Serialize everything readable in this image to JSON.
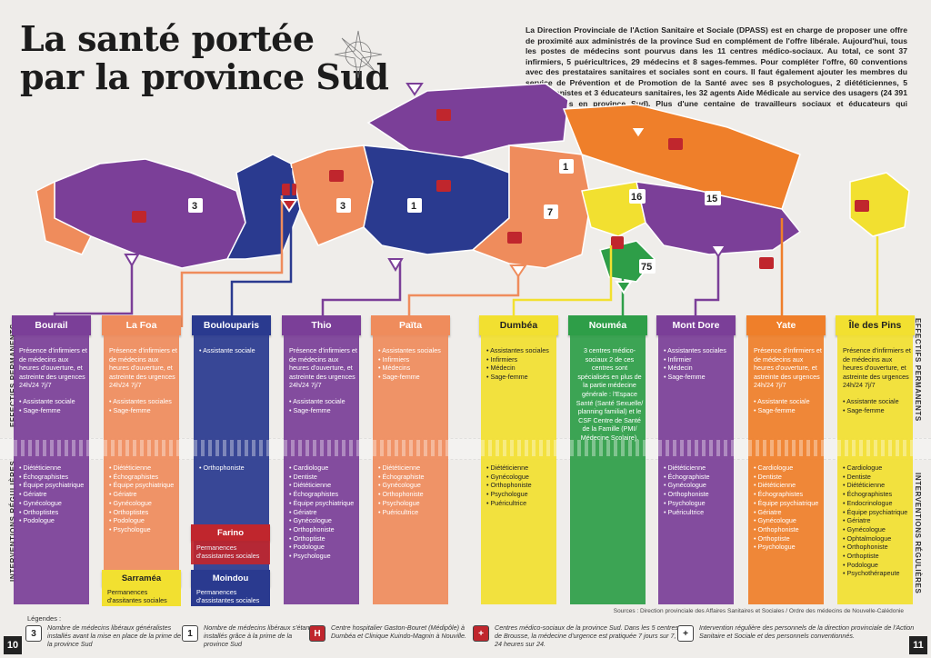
{
  "title": [
    "La santé portée",
    "par la province Sud"
  ],
  "intro": "La Direction Provinciale de l'Action Sanitaire et Sociale (DPASS) est en charge de proposer une offre de proximité aux administrés de la province Sud en complément de l'offre libérale. Aujourd'hui, tous les postes de médecins sont pourvus dans les 11 centres médico-sociaux. Au total, ce sont 37 infirmiers, 5 puéricultrices, 29 médecins et 8 sages-femmes. Pour compléter l'offre, 60 conventions avec des prestataires sanitaires et sociales sont en cours. Il faut également ajouter les membres du service de Prévention et de Promotion de la Santé avec ses 8 psychologues, 2 diététiciennes, 5 orthophonistes et 3 éducateurs sanitaires, les 32 agents Aide Médicale au service des usagers (24 391 bénéficiaires en province Sud). Plus d'une centaine de travailleurs sociaux et éducateurs qui interviennent auprès du public.",
  "side_labels": {
    "permanent": "EFFECTIFS PERMANENTS",
    "regular": "INTERVENTIONS RÉGULIÈRES"
  },
  "map_badges": [
    "3",
    "3",
    "1",
    "1",
    "7",
    "16",
    "15",
    "75"
  ],
  "columns": [
    {
      "name": "Bourail",
      "color": "#7b3f98",
      "perm_lead": "Présence d'infirmiers et de médecins aux heures d'ouverture, et astreinte des urgences 24h/24 7j/7",
      "perm": [
        "Assistante sociale",
        "Sage-femme"
      ],
      "reg": [
        "Diététicienne",
        "Échographistes",
        "Équipe psychiatrique",
        "Gériatre",
        "Gynécologue",
        "Orthoptistes",
        "Podologue"
      ]
    },
    {
      "name": "La Foa",
      "color": "#ef8c5c",
      "perm_lead": "Présence d'infirmiers et de médecins aux heures d'ouverture, et astreinte des urgences 24h/24 7j/7",
      "perm": [
        "Assistantes sociales",
        "Sage-femme"
      ],
      "reg": [
        "Diététicienne",
        "Échographistes",
        "Équipe psychiatrique",
        "Gériatre",
        "Gynécologue",
        "Orthoptistes",
        "Podologue",
        "Psychologue"
      ]
    },
    {
      "name": "Boulouparis",
      "color": "#2a3a8f",
      "perm_lead": "",
      "perm": [
        "Assistante sociale"
      ],
      "reg": [
        "Orthophoniste"
      ]
    },
    {
      "name": "Thio",
      "color": "#7b3f98",
      "perm_lead": "Présence d'infirmiers et de médecins aux heures d'ouverture, et astreinte des urgences 24h/24 7j/7",
      "perm": [
        "Assistante sociale",
        "Sage-femme"
      ],
      "reg": [
        "Cardiologue",
        "Dentiste",
        "Diététicienne",
        "Échographistes",
        "Équipe psychiatrique",
        "Gériatre",
        "Gynécologue",
        "Orthophoniste",
        "Orthoptiste",
        "Podologue",
        "Psychologue"
      ]
    },
    {
      "name": "Païta",
      "color": "#ef8c5c",
      "perm_lead": "",
      "perm": [
        "Assistantes sociales",
        "Infirmiers",
        "Médecins",
        "Sage-femme"
      ],
      "reg": [
        "Diététicienne",
        "Échographiste",
        "Gynécologue",
        "Orthophoniste",
        "Psychologue",
        "Puéricultrice"
      ]
    },
    {
      "name": "Dumbéa",
      "color": "#f2e030",
      "perm_lead": "",
      "perm": [
        "Assistantes sociales",
        "Infirmiers",
        "Médecin",
        "Sage-femme"
      ],
      "reg": [
        "Diététicienne",
        "Gynécologue",
        "Orthophoniste",
        "Psychologue",
        "Puéricultrice"
      ]
    },
    {
      "name": "Nouméa",
      "color": "#2e9e48",
      "perm_lead": "3 centres médico-sociaux 2 de ces centres sont spécialisés en plus de la partie médecine générale : l'Espace Santé (Santé Sexuelle/ planning familial) et le CSF Centre de Santé de la Famille (PMI/ Médecine Scolaire).",
      "perm": [],
      "reg": []
    },
    {
      "name": "Mont Dore",
      "color": "#7b3f98",
      "perm_lead": "",
      "perm": [
        "Assistantes sociales",
        "Infirmier",
        "Médecin",
        "Sage-femme"
      ],
      "reg": [
        "Diététicienne",
        "Échographiste",
        "Gynécologue",
        "Orthophoniste",
        "Psychologue",
        "Puéricultrice"
      ]
    },
    {
      "name": "Yate",
      "color": "#ef7f2a",
      "perm_lead": "Présence d'infirmiers et de médecins aux heures d'ouverture, et astreinte des urgences 24h/24 7j/7",
      "perm": [
        "Assistante sociale",
        "Sage-femme"
      ],
      "reg": [
        "Cardiologue",
        "Dentiste",
        "Diététicienne",
        "Échographistes",
        "Équipe psychiatrique",
        "Gériatre",
        "Gynécologue",
        "Orthophoniste",
        "Orthoptiste",
        "Psychologue"
      ]
    },
    {
      "name": "Île des Pins",
      "color": "#f2e030",
      "perm_lead": "Présence d'infirmiers et de médecins aux heures d'ouverture, et astreinte des urgences 24h/24 7j/7",
      "perm": [
        "Assistante sociale",
        "Sage-femme"
      ],
      "reg": [
        "Cardiologue",
        "Dentiste",
        "Diététicienne",
        "Échographistes",
        "Endocrinologue",
        "Équipe psychiatrique",
        "Gériatre",
        "Gynécologue",
        "Ophtalmologue",
        "Orthophoniste",
        "Orthoptiste",
        "Podologue",
        "Psychothérapeute"
      ]
    }
  ],
  "sub_centres": [
    {
      "name": "Farino",
      "color": "#c0262d",
      "text": "Permanences d'assistantes sociales"
    },
    {
      "name": "Sarraméa",
      "color": "#f2e030",
      "text": "Permanences d'assitantes sociales"
    },
    {
      "name": "Moindou",
      "color": "#2a3a8f",
      "text": "Permanences d'assistantes sociales"
    }
  ],
  "sources": "Sources : Direction provinciale des Affaires Sanitaires et Sociales / Ordre des médecins de Nouvelle-Calédonie",
  "legend_title": "Légendes :",
  "legend": [
    {
      "badge": "3",
      "text": "Nombre de médecins libéraux généralistes installés avant la mise en place de la prime de la province Sud"
    },
    {
      "badge": "1",
      "text": "Nombre de médecins libéraux s'étant installés grâce à la prime de la province Sud"
    },
    {
      "badge": "H",
      "text": "Centre hospitalier Gaston-Bouret (Médipôle) à Dumbéa et Clinique Kuindo-Magnin à Nouville."
    },
    {
      "badge": "+",
      "text": "Centres médico-sociaux de la province Sud. Dans les 5 centres de Brousse, la médecine d'urgence est pratiquée 7 jours sur 7, 24 heures sur 24."
    },
    {
      "badge": "+",
      "text": "Intervention régulière des personnels de la direction provinciale de l'Action Sanitaire et Sociale et des personnels conventionnés."
    }
  ],
  "page_left": "10",
  "page_right": "11",
  "colors": {
    "purple": "#7b3f98",
    "salmon": "#ef8c5c",
    "navy": "#2a3a8f",
    "yellow": "#f2e030",
    "green": "#2e9e48",
    "orange": "#ef7f2a",
    "red": "#c0262d"
  }
}
